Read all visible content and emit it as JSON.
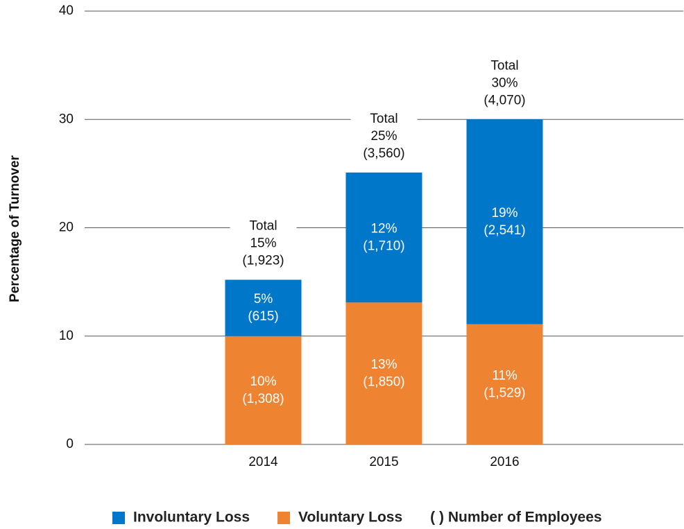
{
  "chart_data": {
    "type": "stacked_bar",
    "y_axis_label": "Percentage of Turnover",
    "categories": [
      "2014",
      "2015",
      "2016"
    ],
    "series": [
      {
        "name": "Voluntary Loss",
        "color": "#ee8332",
        "values": [
          10,
          13.1,
          11.1
        ],
        "value_labels": [
          "10%",
          "13%",
          "11%"
        ],
        "employee_labels": [
          "(1,308)",
          "(1,850)",
          "(1,529)"
        ]
      },
      {
        "name": "Involuntary Loss",
        "color": "#0077c8",
        "values": [
          5.2,
          12,
          18.9
        ],
        "value_labels": [
          "5%",
          "12%",
          "19%"
        ],
        "employee_labels": [
          "(615)",
          "(1,710)",
          "(2,541)"
        ]
      }
    ],
    "total_title": "Total",
    "total_labels": [
      "15%",
      "25%",
      "30%"
    ],
    "total_employee_labels": [
      "(1,923)",
      "(3,560)",
      "(4,070)"
    ],
    "legend_order": [
      1,
      0
    ],
    "legend_note": "( ) Number of Employees",
    "ylim": [
      0,
      40
    ],
    "yticks": [
      0,
      10,
      20,
      30,
      40
    ],
    "grid": true
  }
}
